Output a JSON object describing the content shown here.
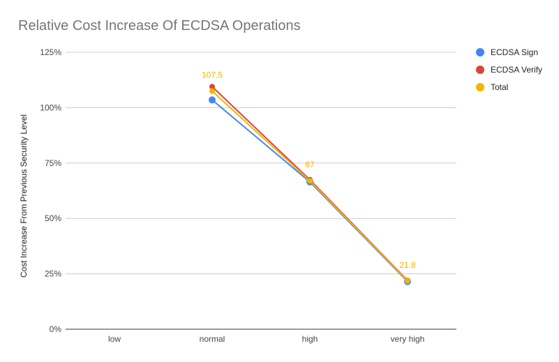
{
  "chart_data": {
    "type": "line",
    "title": "Relative Cost Increase Of ECDSA Operations",
    "xlabel": "",
    "ylabel": "Cost Increase From Previous Security Level",
    "categories": [
      "low",
      "normal",
      "high",
      "very high"
    ],
    "ylim": [
      0,
      125
    ],
    "yticks": [
      0,
      25,
      50,
      75,
      100,
      125
    ],
    "ytick_format": "percent",
    "grid": true,
    "legend_position": "right",
    "series": [
      {
        "name": "ECDSA Sign",
        "color": "#4285f4",
        "values": [
          null,
          103.5,
          66.5,
          21.5
        ],
        "point_radius": 5
      },
      {
        "name": "ECDSA Verify",
        "color": "#db4437",
        "values": [
          null,
          109.5,
          67.5,
          22.0
        ],
        "point_radius": 4
      },
      {
        "name": "Total",
        "color": "#f4b400",
        "values": [
          null,
          107.5,
          67.0,
          21.8
        ],
        "point_radius": 4,
        "data_labels": [
          "",
          "107.5",
          "67",
          "21.8"
        ]
      }
    ]
  }
}
